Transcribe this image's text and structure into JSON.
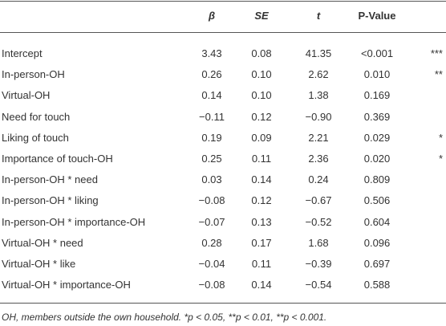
{
  "table": {
    "header": [
      "β",
      "SE",
      "t",
      "P-Value"
    ],
    "rows": [
      {
        "label": "Intercept",
        "beta": "3.43",
        "se": "0.08",
        "t": "41.35",
        "p": "<0.001",
        "sig": "***"
      },
      {
        "label": "In-person-OH",
        "beta": "0.26",
        "se": "0.10",
        "t": "2.62",
        "p": "0.010",
        "sig": "**"
      },
      {
        "label": "Virtual-OH",
        "beta": "0.14",
        "se": "0.10",
        "t": "1.38",
        "p": "0.169"
      },
      {
        "label": "Need for touch",
        "beta": "−0.11",
        "se": "0.12",
        "t": "−0.90",
        "p": "0.369"
      },
      {
        "label": "Liking of touch",
        "beta": "0.19",
        "se": "0.09",
        "t": "2.21",
        "p": "0.029",
        "sig": "*"
      },
      {
        "label": "Importance of touch-OH",
        "beta": "0.25",
        "se": "0.11",
        "t": "2.36",
        "p": "0.020",
        "sig": "*"
      },
      {
        "label": "In-person-OH * need",
        "beta": "0.03",
        "se": "0.14",
        "t": "0.24",
        "p": "0.809"
      },
      {
        "label": "In-person-OH * liking",
        "beta": "−0.08",
        "se": "0.12",
        "t": "−0.67",
        "p": "0.506"
      },
      {
        "label": "In-person-OH * importance-OH",
        "beta": "−0.07",
        "se": "0.13",
        "t": "−0.52",
        "p": "0.604"
      },
      {
        "label": "Virtual-OH * need",
        "beta": "0.28",
        "se": "0.17",
        "t": "1.68",
        "p": "0.096"
      },
      {
        "label": "Virtual-OH * like",
        "beta": "−0.04",
        "se": "0.11",
        "t": "−0.39",
        "p": "0.697"
      },
      {
        "label": "Virtual-OH * importance-OH",
        "beta": "−0.08",
        "se": "0.14",
        "t": "−0.54",
        "p": "0.588"
      }
    ],
    "footnote": "OH, members outside the own household. *p < 0.05, **p < 0.01, **p < 0.001."
  }
}
